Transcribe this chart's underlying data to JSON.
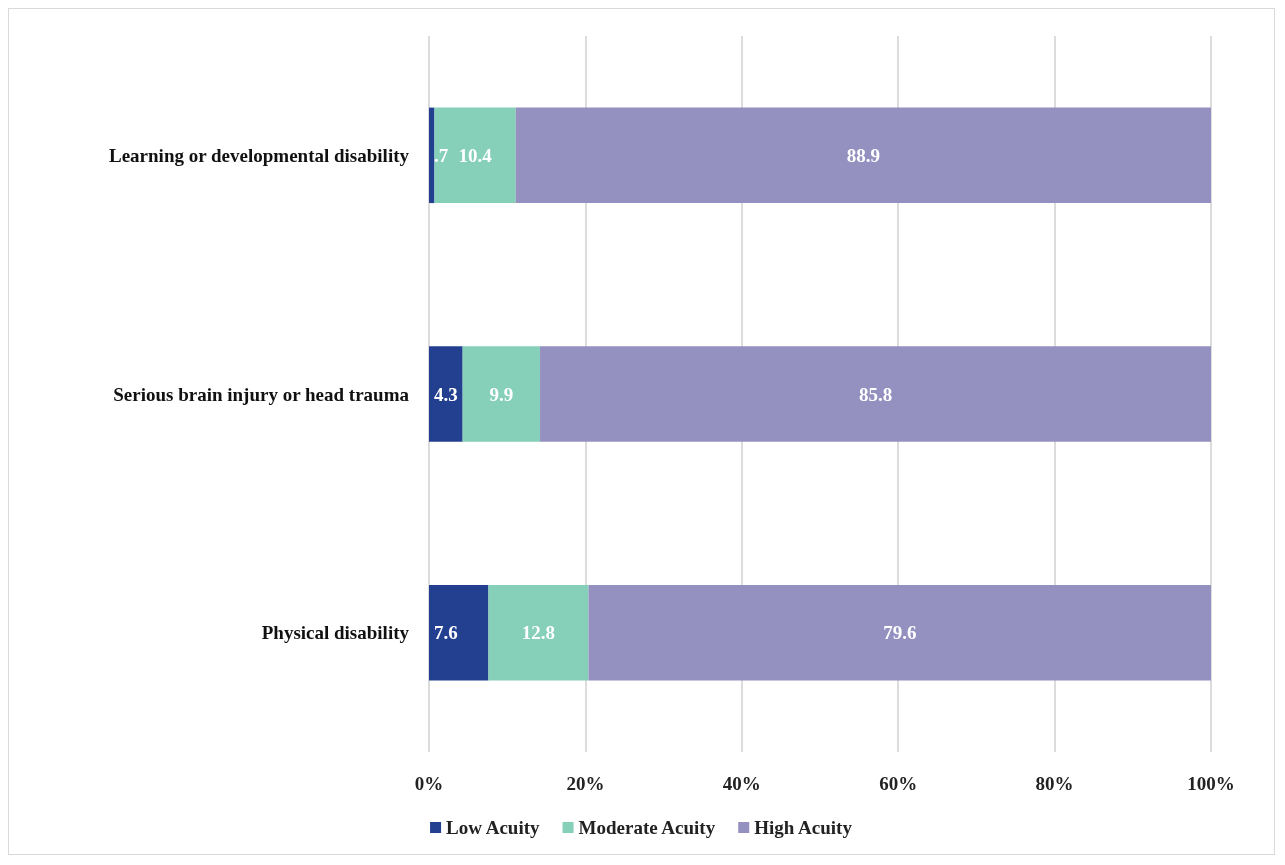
{
  "chart_data": {
    "type": "bar",
    "orientation": "horizontal",
    "stacked": true,
    "categories": [
      "Learning or developmental disability",
      "Serious brain injury or head trauma",
      "Physical disability"
    ],
    "series": [
      {
        "name": "Low Acuity",
        "color": "#233f8f",
        "values": [
          0.7,
          4.3,
          7.6
        ],
        "value_labels": [
          ".7",
          "4.3",
          "7.6"
        ]
      },
      {
        "name": "Moderate Acuity",
        "color": "#86cfb9",
        "values": [
          10.4,
          9.9,
          12.8
        ],
        "value_labels": [
          "10.4",
          "9.9",
          "12.8"
        ]
      },
      {
        "name": "High Acuity",
        "color": "#9490c0",
        "values": [
          88.9,
          85.8,
          79.6
        ],
        "value_labels": [
          "88.9",
          "85.8",
          "79.6"
        ]
      }
    ],
    "xlim": [
      0,
      100
    ],
    "xticks": [
      {
        "value": 0,
        "label": "0%"
      },
      {
        "value": 20,
        "label": "20%"
      },
      {
        "value": 40,
        "label": "40%"
      },
      {
        "value": 60,
        "label": "60%"
      },
      {
        "value": 80,
        "label": "80%"
      },
      {
        "value": 100,
        "label": "100%"
      }
    ],
    "grid": "x",
    "legend": "bottom"
  }
}
